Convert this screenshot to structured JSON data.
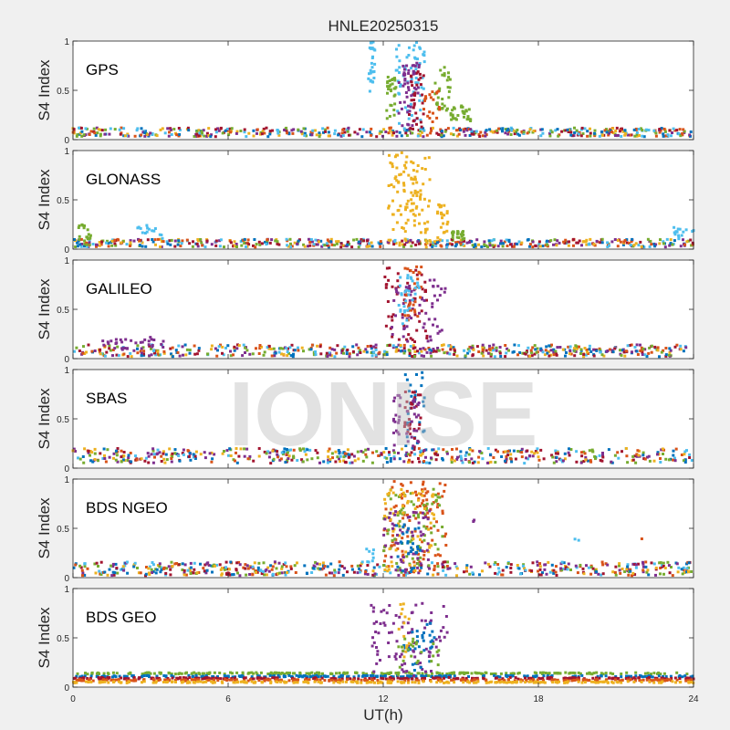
{
  "figure": {
    "title": "HNLE20250315",
    "xlabel": "UT(h)",
    "watermark": "IONISE",
    "background": "#f0f0f0"
  },
  "colors": [
    "#0072BD",
    "#D95319",
    "#EDB120",
    "#7E2F8E",
    "#77AC30",
    "#4DBEEE",
    "#A2142F"
  ],
  "chart_data": [
    {
      "type": "scatter",
      "panel": "GPS",
      "ylabel": "S4 Index",
      "xlim": [
        0,
        24
      ],
      "ylim": [
        0,
        1
      ],
      "xticks": [
        0,
        6,
        12,
        18,
        24
      ],
      "yticks": [
        0,
        0.5,
        1
      ],
      "baseline": [
        0.03,
        0.12
      ],
      "bursts": [
        {
          "x": [
            11.4,
            11.7
          ],
          "y": [
            0.45,
            1.0
          ],
          "n": 28,
          "color": 5
        },
        {
          "x": [
            12.1,
            12.5
          ],
          "y": [
            0.15,
            0.65
          ],
          "n": 30,
          "color": 4
        },
        {
          "x": [
            12.5,
            13.6
          ],
          "y": [
            0.1,
            1.0
          ],
          "n": 60,
          "color": 5
        },
        {
          "x": [
            12.6,
            13.4
          ],
          "y": [
            0.1,
            0.8
          ],
          "n": 50,
          "color": 3
        },
        {
          "x": [
            13.0,
            13.6
          ],
          "y": [
            0.1,
            0.7
          ],
          "n": 30,
          "color": 6
        },
        {
          "x": [
            14.0,
            14.6
          ],
          "y": [
            0.25,
            0.75
          ],
          "n": 30,
          "color": 4
        },
        {
          "x": [
            14.6,
            15.4
          ],
          "y": [
            0.18,
            0.35
          ],
          "n": 30,
          "color": 4
        },
        {
          "x": [
            13.5,
            14.2
          ],
          "y": [
            0.15,
            0.5
          ],
          "n": 20,
          "color": 1
        }
      ]
    },
    {
      "type": "scatter",
      "panel": "GLONASS",
      "ylabel": "S4 Index",
      "xlim": [
        0,
        24
      ],
      "ylim": [
        0,
        1
      ],
      "xticks": [
        0,
        6,
        12,
        18,
        24
      ],
      "yticks": [
        0,
        0.5,
        1
      ],
      "baseline": [
        0.02,
        0.1
      ],
      "bursts": [
        {
          "x": [
            12.2,
            13.8
          ],
          "y": [
            0.05,
            0.98
          ],
          "n": 110,
          "color": 2
        },
        {
          "x": [
            14.1,
            14.5
          ],
          "y": [
            0.05,
            0.45
          ],
          "n": 25,
          "color": 2
        },
        {
          "x": [
            14.5,
            15.2
          ],
          "y": [
            0.08,
            0.18
          ],
          "n": 20,
          "color": 4
        },
        {
          "x": [
            0.2,
            0.8
          ],
          "y": [
            0.1,
            0.25
          ],
          "n": 15,
          "color": 4
        },
        {
          "x": [
            2.5,
            3.5
          ],
          "y": [
            0.1,
            0.25
          ],
          "n": 15,
          "color": 5
        },
        {
          "x": [
            23.2,
            24.0
          ],
          "y": [
            0.1,
            0.22
          ],
          "n": 15,
          "color": 5
        }
      ]
    },
    {
      "type": "scatter",
      "panel": "GALILEO",
      "ylabel": "S4 Index",
      "xlim": [
        0,
        24
      ],
      "ylim": [
        0,
        1
      ],
      "xticks": [
        0,
        6,
        12,
        18,
        24
      ],
      "yticks": [
        0,
        0.5,
        1
      ],
      "baseline": [
        0.02,
        0.14
      ],
      "bursts": [
        {
          "x": [
            12.0,
            13.8
          ],
          "y": [
            0.05,
            0.92
          ],
          "n": 60,
          "color": 6
        },
        {
          "x": [
            12.3,
            14.4
          ],
          "y": [
            0.1,
            0.85
          ],
          "n": 60,
          "color": 3
        },
        {
          "x": [
            12.8,
            13.5
          ],
          "y": [
            0.3,
            0.95
          ],
          "n": 30,
          "color": 1
        },
        {
          "x": [
            12.6,
            13.4
          ],
          "y": [
            0.2,
            0.85
          ],
          "n": 30,
          "color": 5
        },
        {
          "x": [
            1.0,
            3.5
          ],
          "y": [
            0.1,
            0.22
          ],
          "n": 30,
          "color": 3
        }
      ]
    },
    {
      "type": "scatter",
      "panel": "SBAS",
      "ylabel": "S4 Index",
      "xlim": [
        0,
        24
      ],
      "ylim": [
        0,
        1
      ],
      "xticks": [
        0,
        6,
        12,
        18,
        24
      ],
      "yticks": [
        0,
        0.5,
        1
      ],
      "baseline": [
        0.05,
        0.2
      ],
      "bursts": [
        {
          "x": [
            12.4,
            12.7
          ],
          "y": [
            0.1,
            0.75
          ],
          "n": 20,
          "color": 3
        },
        {
          "x": [
            12.8,
            13.6
          ],
          "y": [
            0.2,
            0.97
          ],
          "n": 35,
          "color": 0
        },
        {
          "x": [
            12.8,
            13.5
          ],
          "y": [
            0.2,
            0.8
          ],
          "n": 30,
          "color": 6
        },
        {
          "x": [
            12.9,
            13.4
          ],
          "y": [
            0.2,
            0.7
          ],
          "n": 20,
          "color": 3
        }
      ]
    },
    {
      "type": "scatter",
      "panel": "BDS NGEO",
      "ylabel": "S4 Index",
      "xlim": [
        0,
        24
      ],
      "ylim": [
        0,
        1
      ],
      "xticks": [
        0,
        6,
        12,
        18,
        24
      ],
      "yticks": [
        0,
        0.5,
        1
      ],
      "baseline": [
        0.02,
        0.16
      ],
      "bursts": [
        {
          "x": [
            12.0,
            14.5
          ],
          "y": [
            0.05,
            0.98
          ],
          "n": 100,
          "color": 1
        },
        {
          "x": [
            12.0,
            14.3
          ],
          "y": [
            0.05,
            0.9
          ],
          "n": 70,
          "color": 4
        },
        {
          "x": [
            12.0,
            14.0
          ],
          "y": [
            0.05,
            0.9
          ],
          "n": 60,
          "color": 2
        },
        {
          "x": [
            12.0,
            13.8
          ],
          "y": [
            0.05,
            0.7
          ],
          "n": 50,
          "color": 3
        },
        {
          "x": [
            12.5,
            13.5
          ],
          "y": [
            0.05,
            0.55
          ],
          "n": 30,
          "color": 0
        },
        {
          "x": [
            11.3,
            11.7
          ],
          "y": [
            0.15,
            0.35
          ],
          "n": 8,
          "color": 5
        },
        {
          "x": [
            15.4,
            15.6
          ],
          "y": [
            0.5,
            0.6
          ],
          "n": 2,
          "color": 3
        },
        {
          "x": [
            19.3,
            19.6
          ],
          "y": [
            0.3,
            0.42
          ],
          "n": 2,
          "color": 5
        },
        {
          "x": [
            21.9,
            22.1
          ],
          "y": [
            0.38,
            0.42
          ],
          "n": 1,
          "color": 1
        }
      ]
    },
    {
      "type": "scatter",
      "panel": "BDS GEO",
      "ylabel": "S4 Index",
      "xlim": [
        0,
        24
      ],
      "ylim": [
        0,
        1
      ],
      "xticks": [
        0,
        6,
        12,
        18,
        24
      ],
      "yticks": [
        0,
        0.5,
        1
      ],
      "bands": [
        {
          "y": 0.14,
          "color": 4
        },
        {
          "y": 0.11,
          "color": 0
        },
        {
          "y": 0.09,
          "color": 6
        },
        {
          "y": 0.07,
          "color": 1
        },
        {
          "y": 0.05,
          "color": 2
        }
      ],
      "bursts": [
        {
          "x": [
            11.5,
            14.5
          ],
          "y": [
            0.1,
            0.85
          ],
          "n": 90,
          "color": 3
        },
        {
          "x": [
            12.8,
            14.0
          ],
          "y": [
            0.15,
            0.65
          ],
          "n": 30,
          "color": 0
        },
        {
          "x": [
            12.6,
            13.0
          ],
          "y": [
            0.3,
            0.88
          ],
          "n": 15,
          "color": 2
        },
        {
          "x": [
            12.5,
            14.2
          ],
          "y": [
            0.1,
            0.5
          ],
          "n": 25,
          "color": 4
        }
      ]
    }
  ]
}
